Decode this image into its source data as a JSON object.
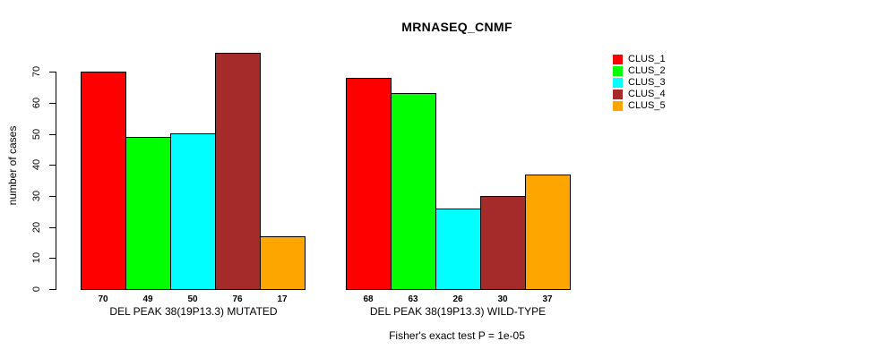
{
  "chart_data": {
    "type": "bar",
    "title": "MRNASEQ_CNMF",
    "ylabel": "number of cases",
    "ylim": [
      0,
      70
    ],
    "yticks": [
      0,
      10,
      20,
      30,
      40,
      50,
      60,
      70
    ],
    "grid": false,
    "legend_position": "right",
    "groups": [
      "DEL PEAK 38(19P13.3) MUTATED",
      "DEL PEAK 38(19P13.3) WILD-TYPE"
    ],
    "series": [
      {
        "name": "CLUS_1",
        "color": "#ff0000",
        "values": [
          70,
          68
        ]
      },
      {
        "name": "CLUS_2",
        "color": "#00ff00",
        "values": [
          49,
          63
        ]
      },
      {
        "name": "CLUS_3",
        "color": "#00ffff",
        "values": [
          50,
          26
        ]
      },
      {
        "name": "CLUS_4",
        "color": "#a52a2a",
        "values": [
          76,
          30
        ]
      },
      {
        "name": "CLUS_5",
        "color": "#ffa500",
        "values": [
          17,
          37
        ]
      }
    ],
    "bar_value_labels_shown": true,
    "footnote": "Fisher's exact test P = 1e-05"
  }
}
